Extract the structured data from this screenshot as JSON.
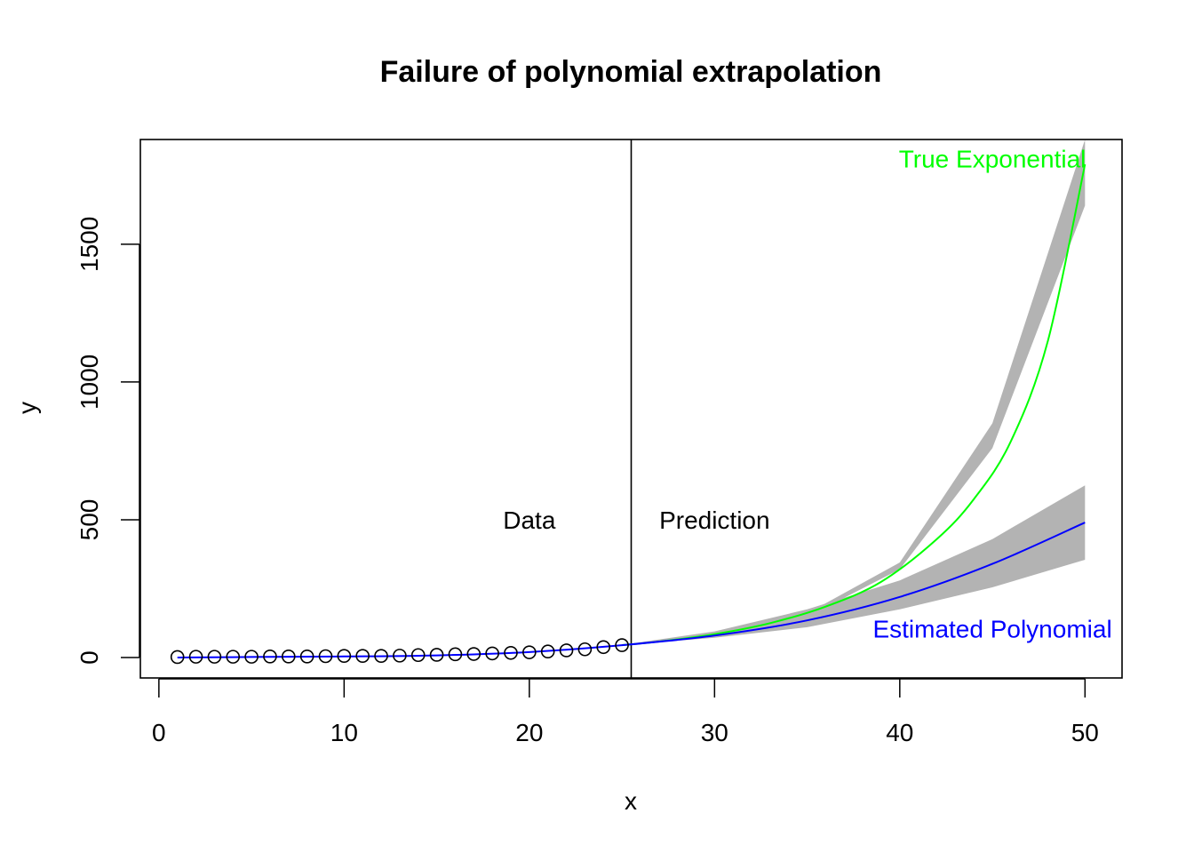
{
  "chart_data": {
    "type": "line",
    "title": "Failure of polynomial extrapolation",
    "xlabel": "x",
    "ylabel": "y",
    "xlim": [
      -1,
      52
    ],
    "ylim": [
      -74,
      1880
    ],
    "xticks": [
      0,
      10,
      20,
      30,
      40,
      50
    ],
    "yticks": [
      0,
      500,
      1000,
      1500
    ],
    "split_x": 25.5,
    "grid": false,
    "annotations": [
      {
        "text": "Data",
        "x": 20,
        "y": 500,
        "color": "#000000"
      },
      {
        "text": "Prediction",
        "x": 30,
        "y": 500,
        "color": "#000000"
      },
      {
        "text": "True Exponential",
        "x": 45,
        "y": 1810,
        "color": "#00ff00"
      },
      {
        "text": "Estimated Polynomial",
        "x": 45,
        "y": 105,
        "color": "#0000ff"
      }
    ],
    "observed_points": {
      "x": [
        1,
        2,
        3,
        4,
        5,
        6,
        7,
        8,
        9,
        10,
        11,
        12,
        13,
        14,
        15,
        16,
        17,
        18,
        19,
        20,
        21,
        22,
        23,
        24,
        25
      ],
      "y": [
        2,
        3,
        3,
        3,
        3,
        4,
        4,
        4,
        5,
        6,
        6,
        6,
        7,
        9,
        10,
        12,
        13,
        15,
        17,
        19,
        22,
        26,
        30,
        38,
        45
      ]
    },
    "series": [
      {
        "name": "True Exponential",
        "color": "#00ff00",
        "x": [
          25,
          27,
          30,
          33,
          36,
          39,
          42,
          44,
          46,
          48,
          50
        ],
        "y": [
          45,
          58,
          85,
          125,
          185,
          275,
          430,
          575,
          785,
          1150,
          1790
        ]
      },
      {
        "name": "Estimated Polynomial",
        "color": "#0000ff",
        "x": [
          1,
          5,
          10,
          15,
          20,
          25,
          30,
          35,
          40,
          45,
          50
        ],
        "y": [
          0,
          2,
          4,
          8,
          20,
          45,
          80,
          135,
          220,
          340,
          490
        ]
      }
    ],
    "bands": [
      {
        "name": "True Exponential interval",
        "color": "#b3b3b3",
        "x": [
          25,
          30,
          35,
          40,
          45,
          50
        ],
        "lower": [
          44,
          82,
          148,
          320,
          760,
          1640
        ],
        "upper": [
          46,
          88,
          160,
          345,
          850,
          1880
        ]
      },
      {
        "name": "Estimated Polynomial interval",
        "color": "#b3b3b3",
        "x": [
          25,
          30,
          35,
          40,
          45,
          50
        ],
        "lower": [
          45,
          72,
          110,
          175,
          255,
          355
        ],
        "upper": [
          46,
          95,
          175,
          280,
          430,
          625
        ]
      }
    ]
  }
}
